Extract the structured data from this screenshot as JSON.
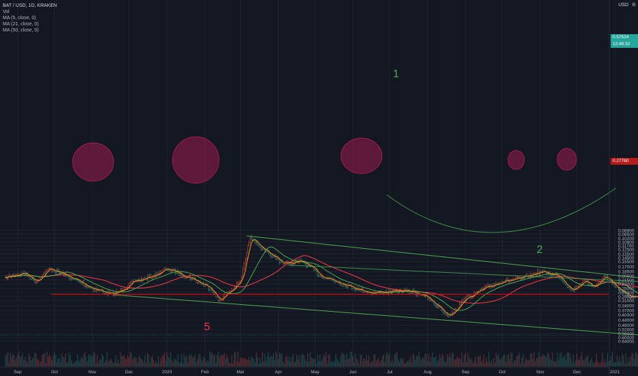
{
  "legend": {
    "symbol": "BAT / USD, 1D, KRAKEN",
    "volume": "Vol",
    "ma1": "MA (5, close, 0)",
    "ma2": "MA (21, close, 0)",
    "ma3": "MA (50, close, 0)"
  },
  "currency": "USD",
  "settings_icon": "gear-icon",
  "colors": {
    "background": "#131722",
    "up": "#26a69a",
    "down": "#ef5350",
    "ma5": "#ff9800",
    "ma21": "#4caf50",
    "ma50": "#f23645",
    "trend": "#4caf50",
    "resistance": "#ff0000"
  },
  "current_price": {
    "price": "0.57524",
    "countdown": "12:48:32"
  },
  "resistance_price": "0.27760",
  "annotations": {
    "label_1": "1",
    "label_2": "2",
    "label_5": "5"
  },
  "chart_data": {
    "type": "candlestick",
    "title": "BAT / USD, 1D, KRAKEN",
    "y_scale": "log",
    "ylim": [
      0.084,
      0.7
    ],
    "y_ticks": [
      "0.64000",
      "0.60000",
      "0.56000",
      "0.52000",
      "0.48000",
      "0.44000",
      "0.40000",
      "0.37000",
      "0.34000",
      "0.31000",
      "0.29000",
      "0.27000",
      "0.25000",
      "0.23000",
      "0.21500",
      "0.20000",
      "0.18500",
      "0.17000",
      "0.15500",
      "0.14500",
      "0.13500",
      "0.12500",
      "0.11700",
      "0.10900",
      "0.10200",
      "0.09500",
      "0.08900"
    ],
    "x_ticks": [
      "Sep",
      "Oct",
      "Nov",
      "Dec",
      "2020",
      "Feb",
      "Mar",
      "Apr",
      "May",
      "Jun",
      "Jul",
      "Aug",
      "Sep",
      "Oct",
      "Nov",
      "Dec",
      "2021",
      "Feb"
    ],
    "key_points": {
      "dates": [
        "2019-08-26",
        "2019-09-10",
        "2019-09-20",
        "2019-10-01",
        "2019-10-20",
        "2019-11-05",
        "2019-11-22",
        "2019-12-10",
        "2019-12-25",
        "2020-01-05",
        "2020-01-25",
        "2020-02-10",
        "2020-02-16",
        "2020-02-26",
        "2020-03-05",
        "2020-03-13",
        "2020-03-25",
        "2020-04-10",
        "2020-04-25",
        "2020-05-10",
        "2020-05-25",
        "2020-06-10",
        "2020-06-20",
        "2020-07-05",
        "2020-07-20",
        "2020-08-01",
        "2020-08-14",
        "2020-08-22",
        "2020-09-05",
        "2020-09-20",
        "2020-10-05",
        "2020-10-20",
        "2020-11-05",
        "2020-11-20",
        "2020-12-01",
        "2020-12-10",
        "2020-12-20",
        "2020-12-28",
        "2021-01-05",
        "2021-01-14",
        "2021-01-25",
        "2021-02-05",
        "2021-02-11"
      ],
      "close": [
        0.205,
        0.19,
        0.22,
        0.175,
        0.21,
        0.25,
        0.28,
        0.22,
        0.2,
        0.175,
        0.21,
        0.25,
        0.31,
        0.26,
        0.22,
        0.098,
        0.13,
        0.16,
        0.155,
        0.2,
        0.225,
        0.255,
        0.27,
        0.265,
        0.26,
        0.28,
        0.35,
        0.41,
        0.3,
        0.25,
        0.22,
        0.21,
        0.185,
        0.2,
        0.26,
        0.22,
        0.24,
        0.2,
        0.24,
        0.28,
        0.3,
        0.36,
        0.55
      ]
    },
    "lines": {
      "upper_trend": {
        "from": {
          "date": "2019-11-22",
          "price": 0.28
        },
        "to": {
          "date": "2021-02-20",
          "price": 0.6
        }
      },
      "lower_trend": {
        "from": {
          "date": "2020-03-10",
          "price": 0.098
        },
        "to": {
          "date": "2021-02-20",
          "price": 0.22
        }
      },
      "resistance": {
        "price": 0.2776
      }
    }
  }
}
